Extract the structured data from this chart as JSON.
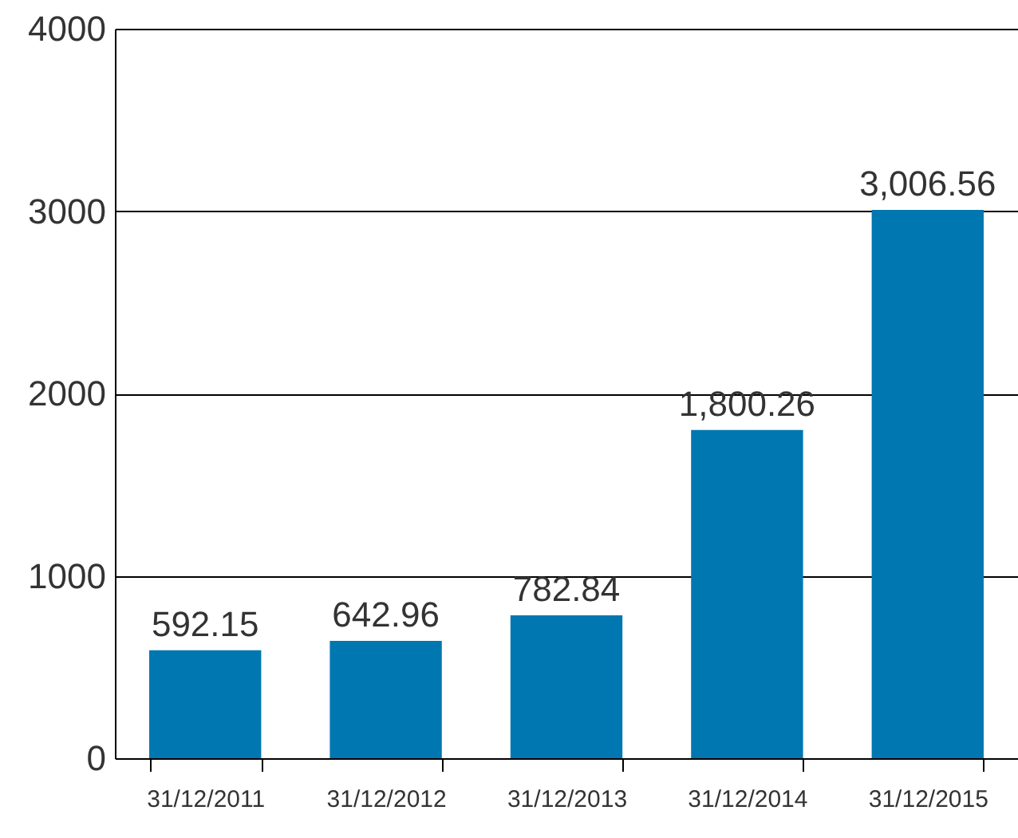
{
  "chart_data": {
    "type": "bar",
    "categories": [
      "31/12/2011",
      "31/12/2012",
      "31/12/2013",
      "31/12/2014",
      "31/12/2015"
    ],
    "values": [
      592.15,
      642.96,
      782.84,
      1800.26,
      3006.56
    ],
    "value_labels": [
      "592.15",
      "642.96",
      "782.84",
      "1,800.26",
      "3,006.56"
    ],
    "color": "#0077b0",
    "ylim": [
      0,
      4000
    ],
    "yticks": [
      0,
      1000,
      2000,
      3000,
      4000
    ],
    "grid": "y"
  }
}
